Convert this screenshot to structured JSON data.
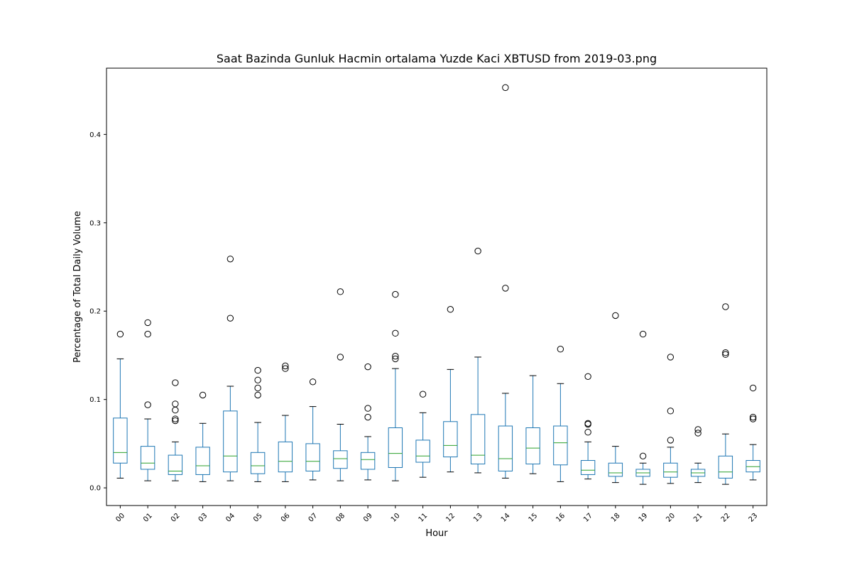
{
  "chart_data": {
    "type": "box",
    "title": "Saat Bazinda Gunluk Hacmin ortalama Yuzde Kaci XBTUSD from 2019-03.png",
    "xlabel": "Hour",
    "ylabel": "Percentage of Total Daily Volume",
    "ylim": [
      -0.02,
      0.475
    ],
    "yticks": [
      0.0,
      0.1,
      0.2,
      0.3,
      0.4
    ],
    "ytick_labels": [
      "0.0",
      "0.1",
      "0.2",
      "0.3",
      "0.4"
    ],
    "grid": false,
    "colors": {
      "box": "#1f77b4",
      "median": "#2ca02c",
      "whisker": "#1f77b4",
      "cap": "#000000",
      "flier": "#000000"
    },
    "categories": [
      "00",
      "01",
      "02",
      "03",
      "04",
      "05",
      "06",
      "07",
      "08",
      "09",
      "10",
      "11",
      "12",
      "13",
      "14",
      "15",
      "16",
      "17",
      "18",
      "19",
      "20",
      "21",
      "22",
      "23"
    ],
    "boxes": [
      {
        "low": 0.011,
        "q1": 0.028,
        "median": 0.04,
        "q3": 0.079,
        "high": 0.146,
        "fliers": [
          0.174
        ]
      },
      {
        "low": 0.008,
        "q1": 0.021,
        "median": 0.028,
        "q3": 0.047,
        "high": 0.078,
        "fliers": [
          0.094,
          0.174,
          0.187
        ]
      },
      {
        "low": 0.008,
        "q1": 0.015,
        "median": 0.019,
        "q3": 0.037,
        "high": 0.052,
        "fliers": [
          0.076,
          0.078,
          0.088,
          0.095,
          0.119
        ]
      },
      {
        "low": 0.007,
        "q1": 0.015,
        "median": 0.025,
        "q3": 0.046,
        "high": 0.073,
        "fliers": [
          0.105
        ]
      },
      {
        "low": 0.008,
        "q1": 0.018,
        "median": 0.036,
        "q3": 0.087,
        "high": 0.115,
        "fliers": [
          0.192,
          0.259
        ]
      },
      {
        "low": 0.007,
        "q1": 0.016,
        "median": 0.025,
        "q3": 0.04,
        "high": 0.074,
        "fliers": [
          0.105,
          0.113,
          0.122,
          0.133
        ]
      },
      {
        "low": 0.007,
        "q1": 0.018,
        "median": 0.03,
        "q3": 0.052,
        "high": 0.082,
        "fliers": [
          0.135,
          0.138
        ]
      },
      {
        "low": 0.009,
        "q1": 0.019,
        "median": 0.03,
        "q3": 0.05,
        "high": 0.092,
        "fliers": [
          0.12
        ]
      },
      {
        "low": 0.008,
        "q1": 0.022,
        "median": 0.033,
        "q3": 0.042,
        "high": 0.072,
        "fliers": [
          0.148,
          0.222
        ]
      },
      {
        "low": 0.009,
        "q1": 0.021,
        "median": 0.032,
        "q3": 0.04,
        "high": 0.058,
        "fliers": [
          0.08,
          0.09,
          0.137
        ]
      },
      {
        "low": 0.008,
        "q1": 0.023,
        "median": 0.039,
        "q3": 0.068,
        "high": 0.135,
        "fliers": [
          0.146,
          0.149,
          0.175,
          0.219
        ]
      },
      {
        "low": 0.012,
        "q1": 0.029,
        "median": 0.036,
        "q3": 0.054,
        "high": 0.085,
        "fliers": [
          0.106
        ]
      },
      {
        "low": 0.018,
        "q1": 0.035,
        "median": 0.048,
        "q3": 0.075,
        "high": 0.134,
        "fliers": [
          0.202
        ]
      },
      {
        "low": 0.017,
        "q1": 0.027,
        "median": 0.037,
        "q3": 0.083,
        "high": 0.148,
        "fliers": [
          0.268
        ]
      },
      {
        "low": 0.011,
        "q1": 0.019,
        "median": 0.033,
        "q3": 0.07,
        "high": 0.107,
        "fliers": [
          0.226,
          0.453
        ]
      },
      {
        "low": 0.016,
        "q1": 0.027,
        "median": 0.045,
        "q3": 0.068,
        "high": 0.127,
        "fliers": []
      },
      {
        "low": 0.007,
        "q1": 0.026,
        "median": 0.051,
        "q3": 0.07,
        "high": 0.118,
        "fliers": [
          0.157
        ]
      },
      {
        "low": 0.01,
        "q1": 0.015,
        "median": 0.02,
        "q3": 0.031,
        "high": 0.052,
        "fliers": [
          0.063,
          0.072,
          0.073,
          0.126
        ]
      },
      {
        "low": 0.006,
        "q1": 0.013,
        "median": 0.017,
        "q3": 0.028,
        "high": 0.047,
        "fliers": [
          0.195
        ]
      },
      {
        "low": 0.004,
        "q1": 0.013,
        "median": 0.017,
        "q3": 0.021,
        "high": 0.028,
        "fliers": [
          0.036,
          0.174
        ]
      },
      {
        "low": 0.005,
        "q1": 0.012,
        "median": 0.018,
        "q3": 0.028,
        "high": 0.046,
        "fliers": [
          0.054,
          0.087,
          0.148
        ]
      },
      {
        "low": 0.006,
        "q1": 0.013,
        "median": 0.017,
        "q3": 0.021,
        "high": 0.028,
        "fliers": [
          0.062,
          0.066
        ]
      },
      {
        "low": 0.004,
        "q1": 0.011,
        "median": 0.018,
        "q3": 0.036,
        "high": 0.061,
        "fliers": [
          0.151,
          0.153,
          0.205
        ]
      },
      {
        "low": 0.009,
        "q1": 0.018,
        "median": 0.024,
        "q3": 0.031,
        "high": 0.049,
        "fliers": [
          0.078,
          0.08,
          0.113
        ]
      }
    ]
  }
}
